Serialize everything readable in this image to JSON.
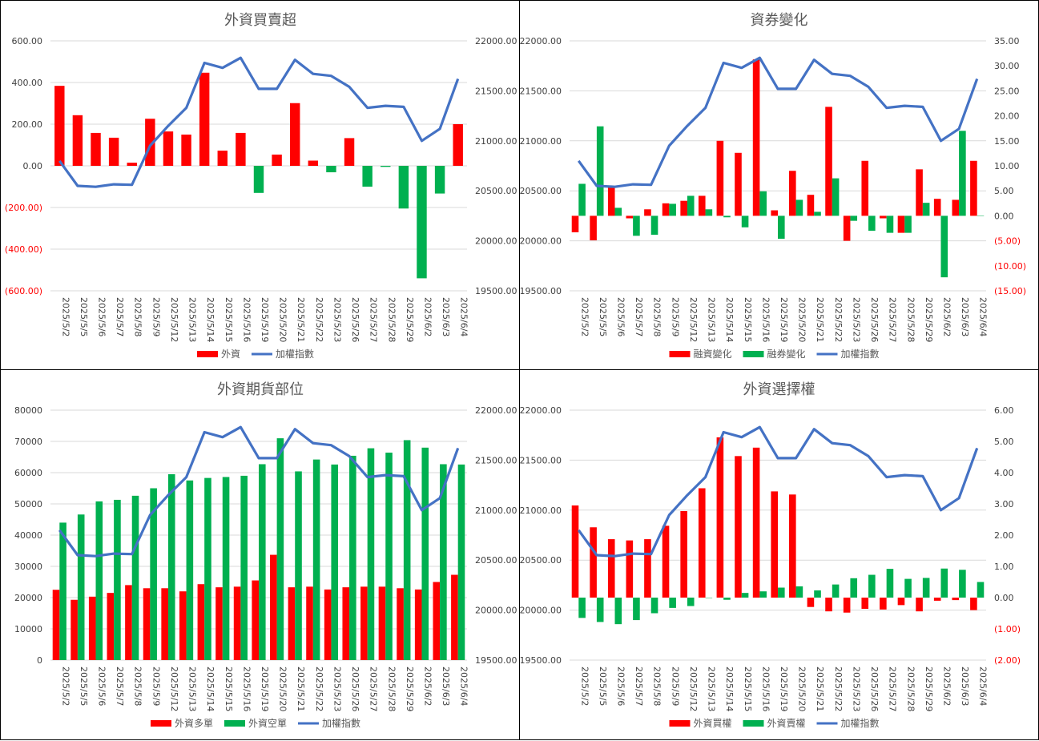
{
  "dates": [
    "2025/5/2",
    "2025/5/5",
    "2025/5/6",
    "2025/5/7",
    "2025/5/8",
    "2025/5/9",
    "2025/5/12",
    "2025/5/13",
    "2025/5/14",
    "2025/5/15",
    "2025/5/16",
    "2025/5/19",
    "2025/5/20",
    "2025/5/21",
    "2025/5/22",
    "2025/5/23",
    "2025/5/26",
    "2025/5/27",
    "2025/5/28",
    "2025/5/29",
    "2025/6/2",
    "2025/6/3",
    "2025/6/4"
  ],
  "colors": {
    "red": "#ff0000",
    "green": "#00b050",
    "blue": "#4472c4",
    "grid": "#d9d9d9"
  },
  "chart_data": [
    {
      "title": "外資買賣超",
      "type": "bar",
      "left_axis": {
        "min": -600,
        "max": 600,
        "step": 200,
        "format": "paren2"
      },
      "right_axis": {
        "min": 19500,
        "max": 22000,
        "step": 500,
        "format": "fixed2"
      },
      "series": [
        {
          "name": "外資",
          "type": "bar",
          "axis": "left",
          "color": "#ff0000",
          "neg_color": "#00b050",
          "values": [
            384,
            243,
            158,
            135,
            15,
            226,
            165,
            150,
            447,
            73,
            158,
            -130,
            54,
            301,
            25,
            -31,
            133,
            -100,
            -5,
            -205,
            -540,
            -133,
            200
          ]
        },
        {
          "name": "加權指數",
          "type": "line",
          "axis": "right",
          "color": "#4472c4",
          "values": [
            20800,
            20550,
            20540,
            20565,
            20560,
            20950,
            21150,
            21330,
            21780,
            21730,
            21830,
            21520,
            21520,
            21810,
            21670,
            21650,
            21540,
            21330,
            21350,
            21340,
            21000,
            21120,
            21620
          ]
        }
      ]
    },
    {
      "title": "資券變化",
      "type": "bar",
      "left_axis": {
        "min": 19500,
        "max": 22000,
        "step": 500,
        "format": "fixed2"
      },
      "right_axis": {
        "min": -15,
        "max": 35,
        "step": 5,
        "format": "paren2"
      },
      "series": [
        {
          "name": "融資變化",
          "type": "bar",
          "axis": "right",
          "color": "#ff0000",
          "values": [
            -3.3,
            -4.9,
            6.0,
            -0.5,
            1.3,
            2.5,
            3.0,
            4.0,
            15.0,
            12.6,
            31.3,
            1.1,
            9.0,
            4.2,
            21.8,
            -5.0,
            11.0,
            -0.5,
            -3.4,
            9.3,
            3.4,
            3.2,
            11.0
          ]
        },
        {
          "name": "融券變化",
          "type": "bar",
          "axis": "right",
          "color": "#00b050",
          "values": [
            6.4,
            17.9,
            1.6,
            -4.0,
            -3.8,
            2.4,
            4.0,
            1.3,
            -0.3,
            -2.3,
            4.9,
            -4.6,
            3.2,
            0.8,
            7.5,
            -1.0,
            -3.0,
            -3.4,
            -3.4,
            2.6,
            -12.3,
            17.0,
            0.0
          ]
        },
        {
          "name": "加權指數",
          "type": "line",
          "axis": "left",
          "color": "#4472c4",
          "values": [
            20800,
            20550,
            20540,
            20565,
            20560,
            20950,
            21150,
            21330,
            21780,
            21730,
            21830,
            21520,
            21520,
            21810,
            21670,
            21650,
            21540,
            21330,
            21350,
            21340,
            21000,
            21120,
            21620
          ]
        }
      ]
    },
    {
      "title": "外資期貨部位",
      "type": "bar",
      "left_axis": {
        "min": 0,
        "max": 80000,
        "step": 10000,
        "format": "int"
      },
      "right_axis": {
        "min": 19500,
        "max": 22000,
        "step": 500,
        "format": "fixed2"
      },
      "series": [
        {
          "name": "外資多單",
          "type": "bar",
          "axis": "left",
          "color": "#ff0000",
          "values": [
            22500,
            19300,
            20300,
            21500,
            24000,
            23000,
            23000,
            22000,
            24300,
            23300,
            23500,
            25500,
            33700,
            23300,
            23500,
            22600,
            23300,
            23500,
            23500,
            23000,
            22600,
            25000,
            27300
          ]
        },
        {
          "name": "外資空單",
          "type": "bar",
          "axis": "left",
          "color": "#00b050",
          "values": [
            44000,
            46600,
            50800,
            51300,
            52600,
            55000,
            59500,
            57500,
            58300,
            58600,
            59000,
            62700,
            71000,
            60400,
            64200,
            62600,
            65400,
            67800,
            66400,
            70400,
            68000,
            62700,
            62600
          ]
        },
        {
          "name": "加權指數",
          "type": "line",
          "axis": "right",
          "color": "#4472c4",
          "values": [
            20800,
            20550,
            20540,
            20565,
            20560,
            20950,
            21150,
            21330,
            21780,
            21730,
            21830,
            21520,
            21520,
            21810,
            21670,
            21650,
            21540,
            21330,
            21350,
            21340,
            21000,
            21120,
            21620
          ]
        }
      ]
    },
    {
      "title": "外資選擇權",
      "type": "bar",
      "left_axis": {
        "min": 19500,
        "max": 22000,
        "step": 500,
        "format": "fixed2"
      },
      "right_axis": {
        "min": -2,
        "max": 6,
        "step": 1,
        "format": "paren2"
      },
      "series": [
        {
          "name": "外資買權",
          "type": "bar",
          "axis": "right",
          "color": "#ff0000",
          "values": [
            2.95,
            2.25,
            1.87,
            1.83,
            1.87,
            2.3,
            2.77,
            3.5,
            5.13,
            4.53,
            4.8,
            3.4,
            3.3,
            -0.3,
            -0.44,
            -0.48,
            -0.36,
            -0.38,
            -0.24,
            -0.44,
            -0.1,
            -0.08,
            -0.4
          ]
        },
        {
          "name": "外資賣權",
          "type": "bar",
          "axis": "right",
          "color": "#00b050",
          "values": [
            -0.65,
            -0.78,
            -0.85,
            -0.72,
            -0.5,
            -0.33,
            -0.27,
            0.0,
            -0.07,
            0.15,
            0.2,
            0.32,
            0.36,
            0.23,
            0.42,
            0.62,
            0.73,
            0.92,
            0.6,
            0.63,
            0.93,
            0.89,
            0.5
          ]
        },
        {
          "name": "加權指數",
          "type": "line",
          "axis": "left",
          "color": "#4472c4",
          "values": [
            20800,
            20550,
            20540,
            20565,
            20560,
            20950,
            21150,
            21330,
            21780,
            21730,
            21830,
            21520,
            21520,
            21810,
            21670,
            21650,
            21540,
            21330,
            21350,
            21340,
            21000,
            21120,
            21620
          ]
        }
      ]
    }
  ]
}
